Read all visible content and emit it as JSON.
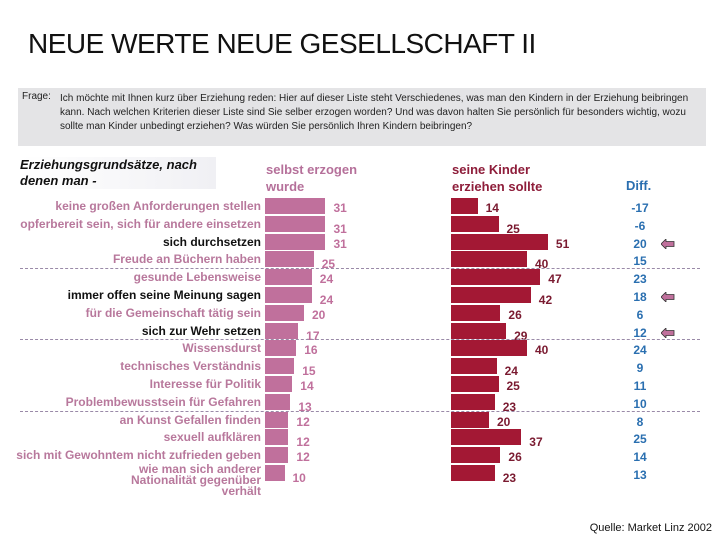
{
  "title": "NEUE WERTE NEUE GESELLSCHAFT II",
  "question": {
    "label": "Frage:",
    "text": "Ich möchte mit Ihnen kurz über Erziehung reden: Hier auf dieser Liste steht Verschiedenes, was man den Kindern in der Erziehung beibringen kann. Nach welchen Kriterien dieser Liste sind Sie selber erzogen worden? Und was davon halten Sie persönlich für besonders wichtig, wozu sollte man Kinder unbedingt erziehen? Was würden Sie persönlich Ihren Kindern beibringen?"
  },
  "source": "Quelle: Market Linz 2002",
  "colors": {
    "self": "#c0709c",
    "kids": "#a31834",
    "label_pink": "#b8789c",
    "label_black": "#111111",
    "diff": "#2a6fb0",
    "arrow": "#c0709c"
  },
  "chart_data": {
    "type": "bar",
    "title": "",
    "category_header": "Erziehungsgrundsätze, nach denen man -",
    "categories": [
      "keine großen Anforderungen stellen",
      "opferbereit sein, sich für andere einsetzen",
      "sich durchsetzen",
      "Freude an Büchern haben",
      "gesunde Lebensweise",
      "immer offen seine Meinung sagen",
      "für die Gemeinschaft tätig sein",
      "sich zur Wehr setzen",
      "Wissensdurst",
      "technisches Verständnis",
      "Interesse für Politik",
      "Problembewusstsein für Gefahren",
      "an Kunst Gefallen finden",
      "sexuell aufklären",
      "sich mit Gewohntem nicht zufrieden geben",
      "wie man sich anderer Nationalität gegenüber verhält"
    ],
    "highlighted": [
      false,
      false,
      true,
      false,
      false,
      true,
      false,
      true,
      false,
      false,
      false,
      false,
      false,
      false,
      false,
      false
    ],
    "series": [
      {
        "name": "selbst erzogen wurde",
        "values": [
          31,
          31,
          31,
          25,
          24,
          24,
          20,
          17,
          16,
          15,
          14,
          13,
          12,
          12,
          12,
          10
        ]
      },
      {
        "name": "seine Kinder erziehen sollte",
        "values": [
          14,
          25,
          51,
          40,
          47,
          42,
          26,
          29,
          40,
          24,
          25,
          23,
          20,
          37,
          26,
          23
        ]
      }
    ],
    "diff": {
      "name": "Diff.",
      "values": [
        -17,
        -6,
        20,
        15,
        23,
        18,
        6,
        12,
        24,
        9,
        11,
        10,
        8,
        25,
        14,
        13
      ]
    },
    "orientation": "horizontal"
  }
}
